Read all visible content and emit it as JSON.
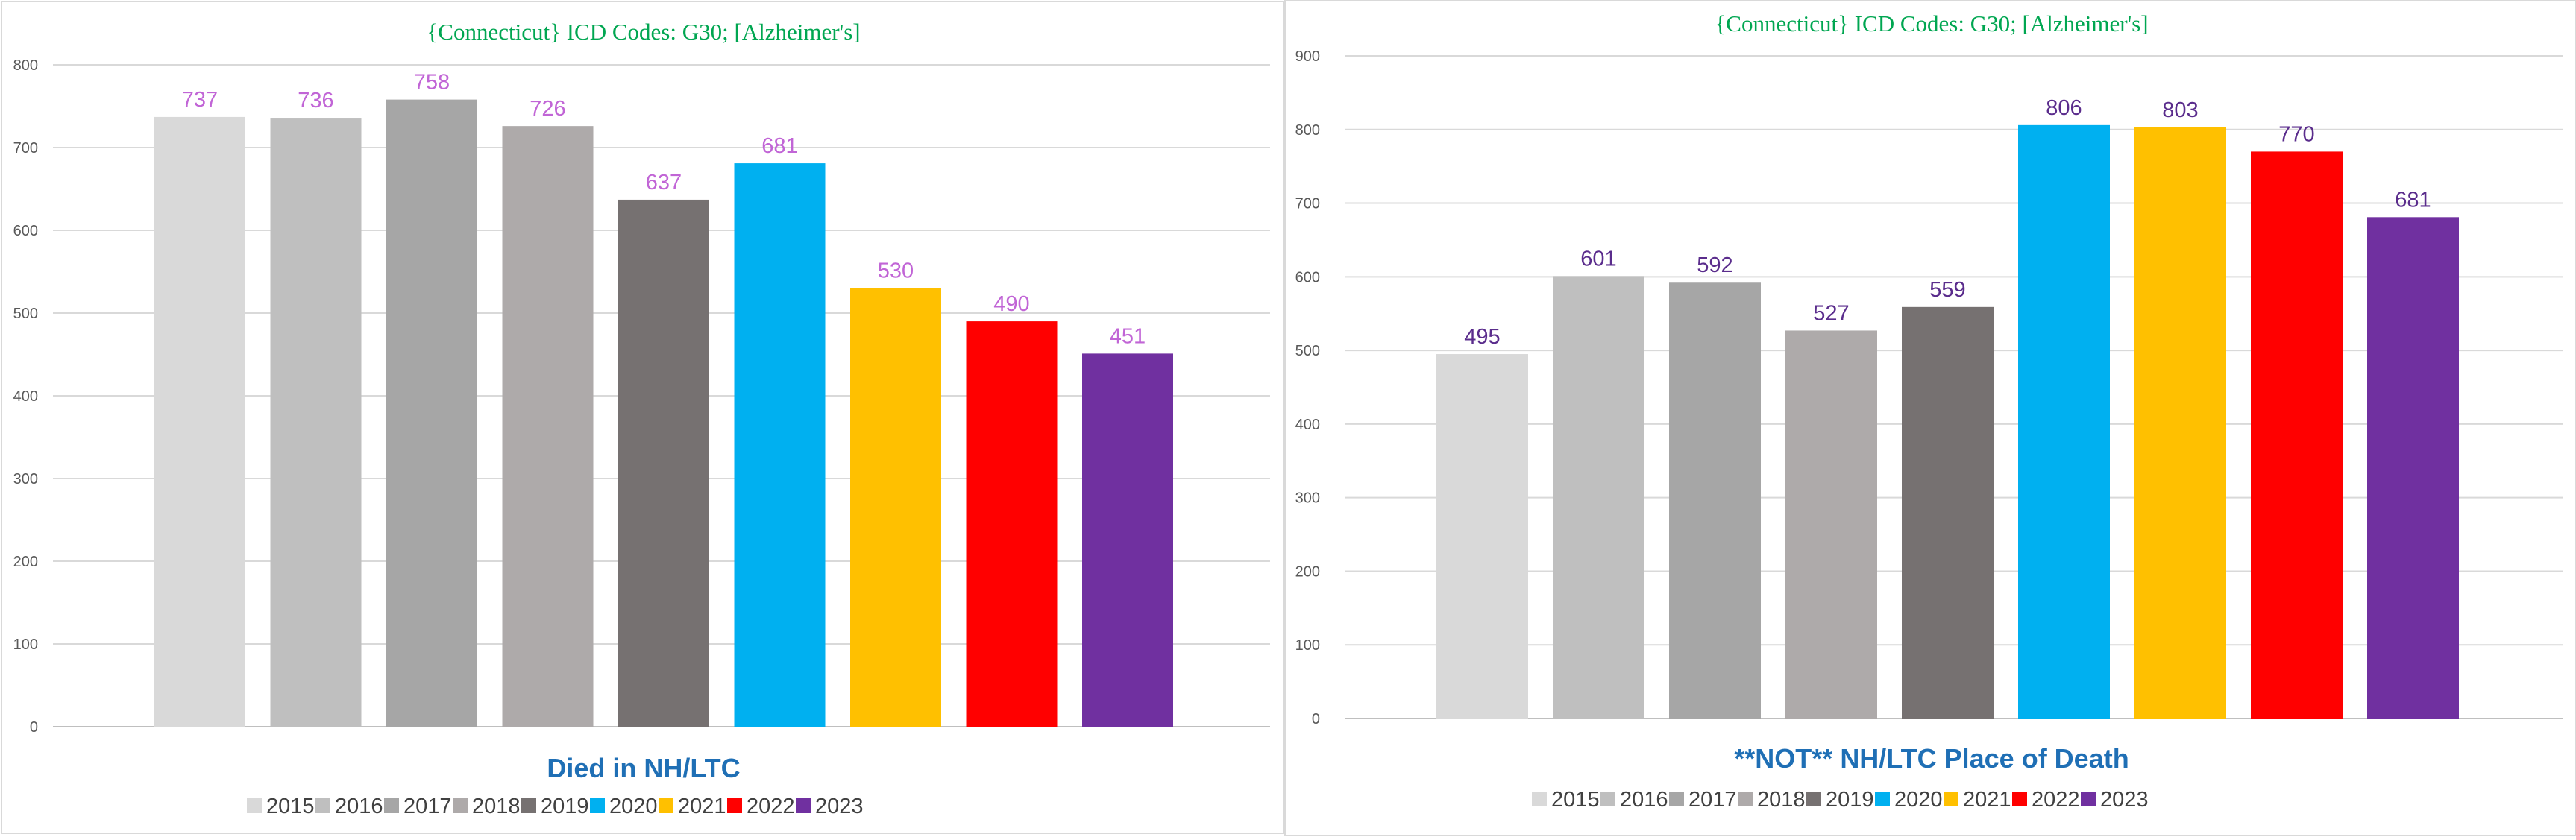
{
  "colors": {
    "title": "#00A651",
    "subtitle": "#1F6FB5",
    "grid": "#d9d9d9",
    "left_labels": "#C165D6",
    "right_labels": "#5A2C8C"
  },
  "legend_colors": [
    "#d9d9d9",
    "#bfbfbf",
    "#a6a6a6",
    "#aeaaaa",
    "#767171",
    "#00b0f0",
    "#ffc000",
    "#ff0000",
    "#7030a0"
  ],
  "chart_data": [
    {
      "type": "bar",
      "title": "{Connecticut}   ICD Codes:  G30;  [Alzheimer's]",
      "subtitle": "Died in NH/LTC",
      "categories": [
        "2015",
        "2016",
        "2017",
        "2018",
        "2019",
        "2020",
        "2021",
        "2022",
        "2023"
      ],
      "values": [
        737,
        736,
        758,
        726,
        637,
        681,
        530,
        490,
        451
      ],
      "ylim": [
        0,
        800
      ],
      "yticks": [
        "0",
        "100",
        "200",
        "300",
        "400",
        "500",
        "600",
        "700",
        "800"
      ],
      "legend_position": "bottom",
      "grid": true
    },
    {
      "type": "bar",
      "title": "{Connecticut}   ICD Codes:  G30;  [Alzheimer's]",
      "subtitle": "**NOT** NH/LTC Place of Death",
      "categories": [
        "2015",
        "2016",
        "2017",
        "2018",
        "2019",
        "2020",
        "2021",
        "2022",
        "2023"
      ],
      "values": [
        495,
        601,
        592,
        527,
        559,
        806,
        803,
        770,
        681
      ],
      "ylim": [
        0,
        900
      ],
      "yticks": [
        "0",
        "100",
        "200",
        "300",
        "400",
        "500",
        "600",
        "700",
        "800",
        "900"
      ],
      "legend_position": "bottom",
      "grid": true
    }
  ]
}
